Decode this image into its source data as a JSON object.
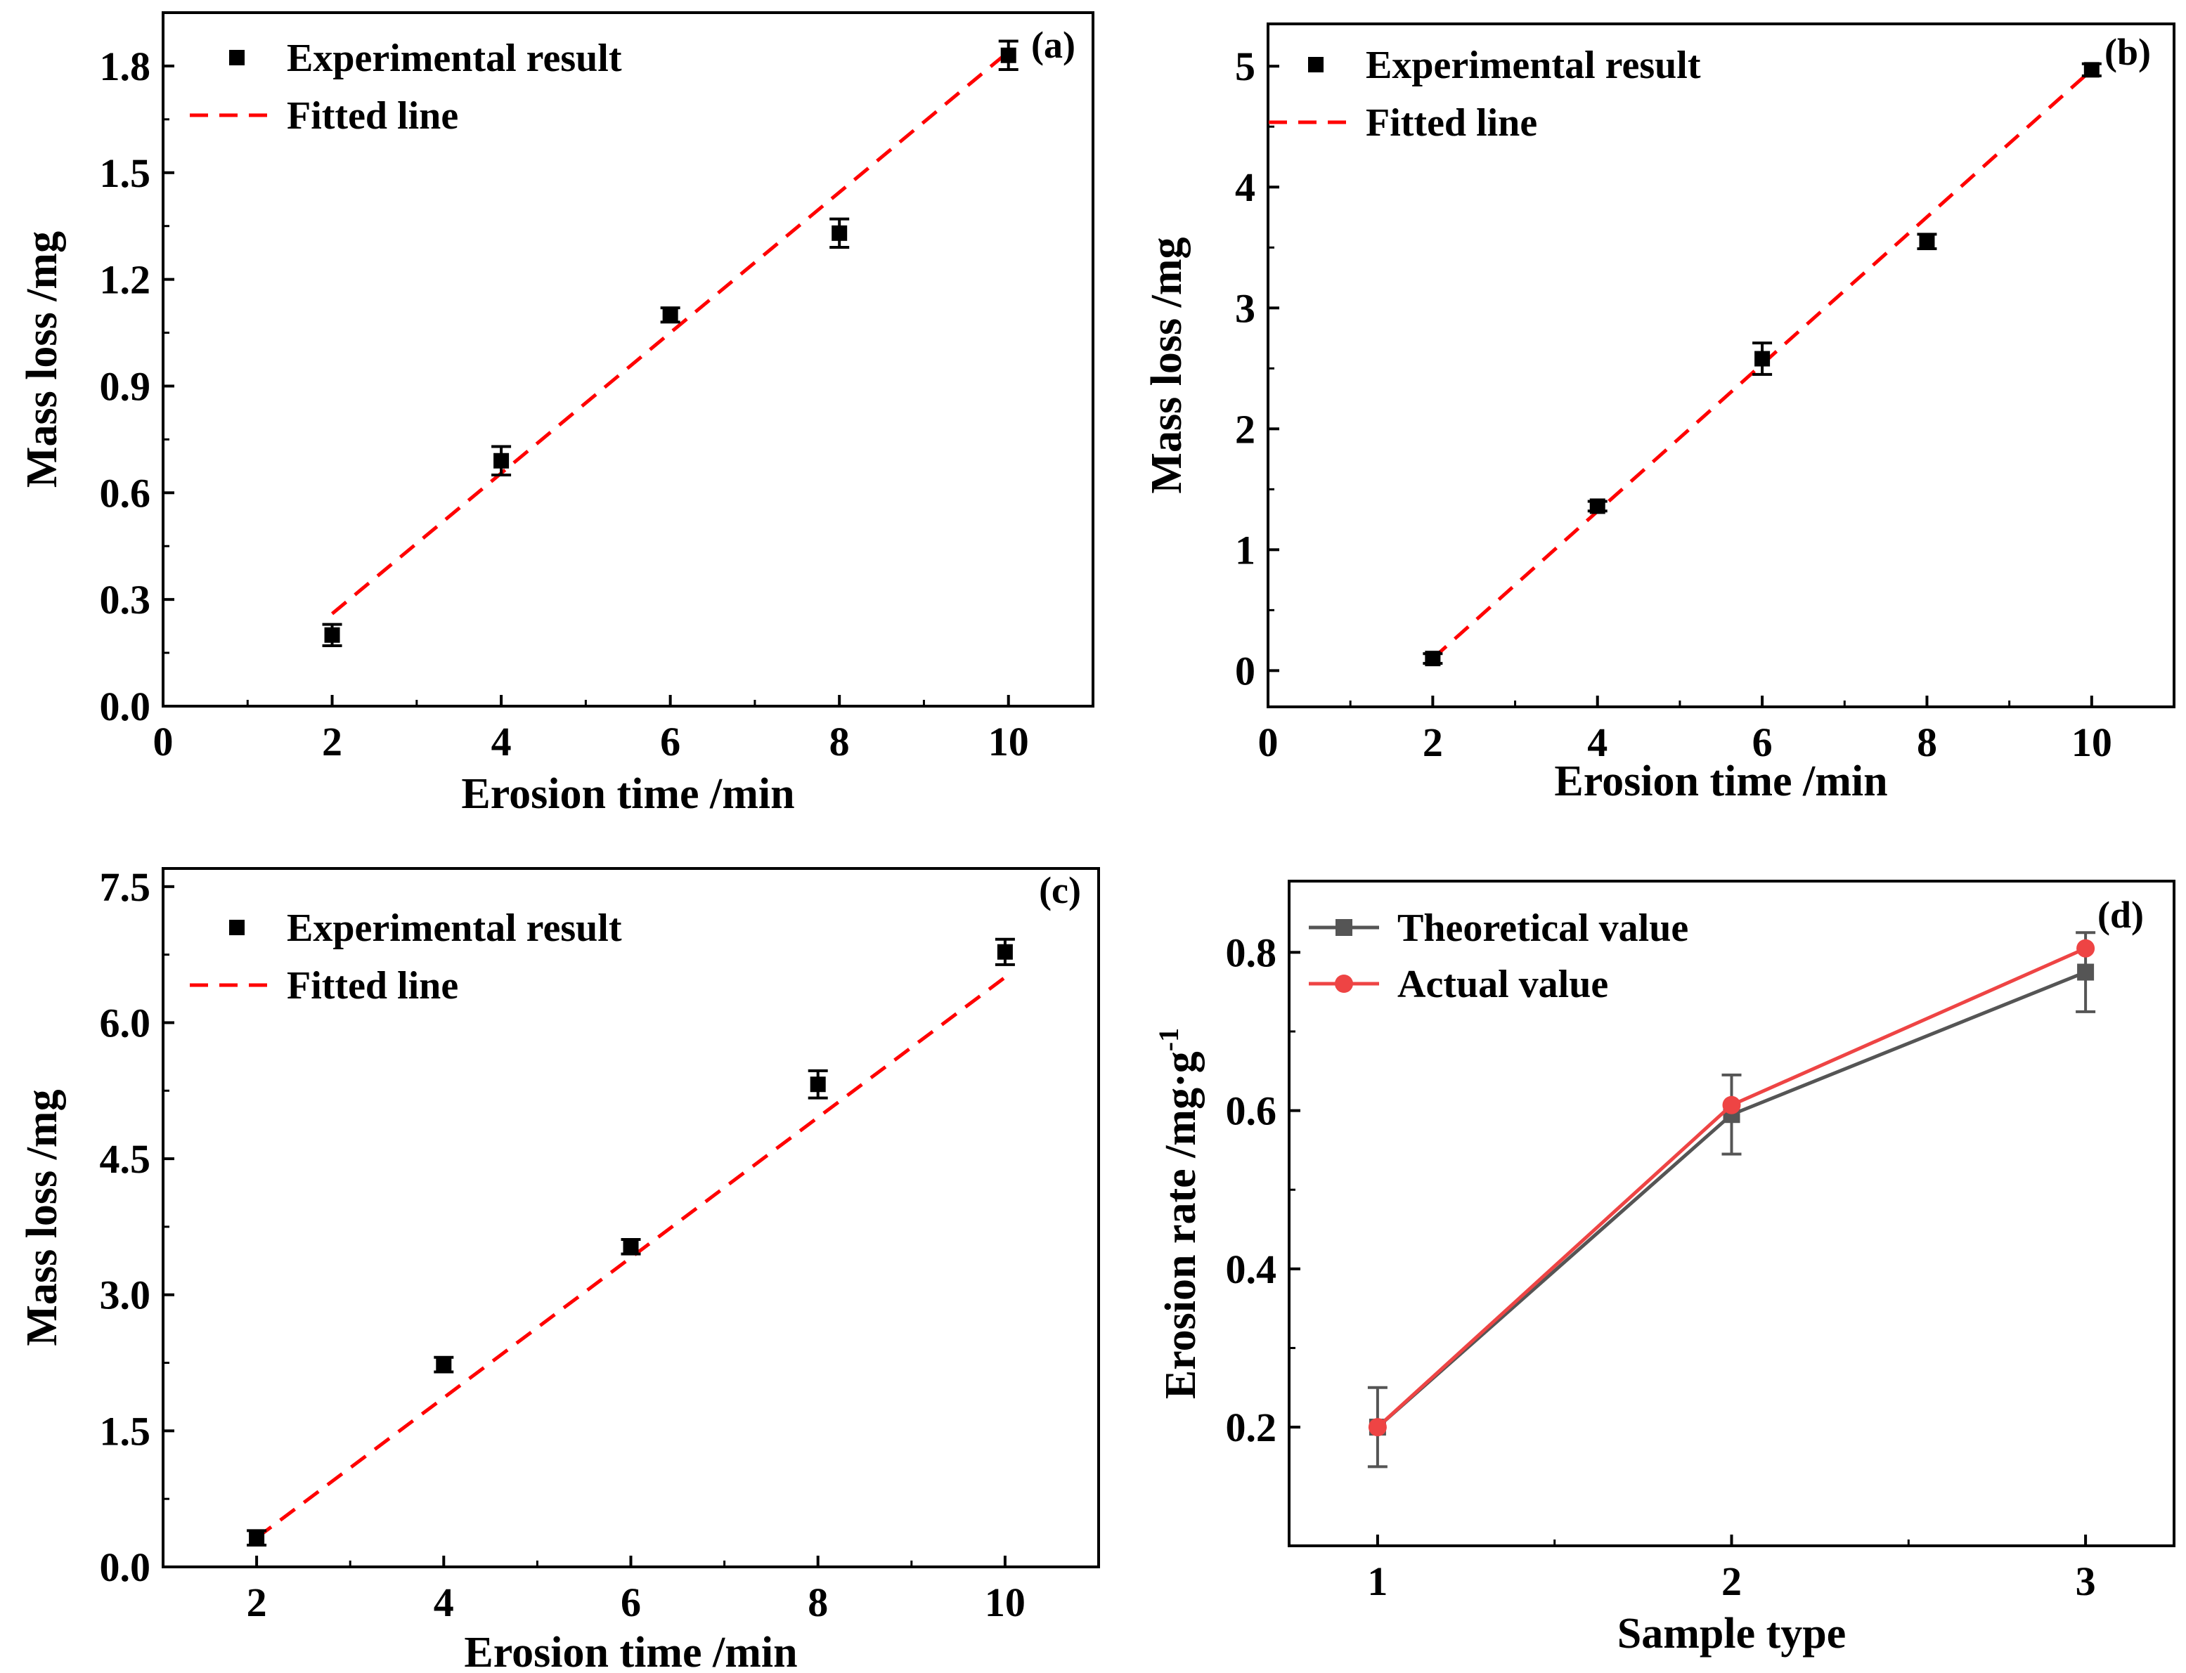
{
  "chart_data": [
    {
      "panel": "(a)",
      "type": "scatter",
      "xlabel": "Erosion time /min",
      "ylabel": "Mass loss /mg",
      "xlim": [
        0,
        11
      ],
      "ylim": [
        0,
        1.95
      ],
      "xticks": [
        "0",
        "2",
        "4",
        "6",
        "8",
        "10"
      ],
      "yticks": [
        "0.0",
        "0.3",
        "0.6",
        "0.9",
        "1.2",
        "1.5",
        "1.8"
      ],
      "legend": [
        "Experimental result",
        "Fitted line"
      ],
      "legend_position": "top-left",
      "series": [
        {
          "name": "Experimental result",
          "kind": "scatter",
          "color": "#000000",
          "x": [
            2,
            4,
            6,
            8,
            10
          ],
          "y": [
            0.2,
            0.69,
            1.1,
            1.33,
            1.83
          ],
          "err": [
            0.03,
            0.04,
            0.02,
            0.04,
            0.04
          ]
        },
        {
          "name": "Fitted line",
          "kind": "fit",
          "color": "#ff0000",
          "x": [
            2,
            10
          ],
          "y": [
            0.26,
            1.84
          ]
        }
      ]
    },
    {
      "panel": "(b)",
      "type": "scatter",
      "xlabel": "Erosion time /min",
      "ylabel": "Mass loss /mg",
      "xlim": [
        0,
        11
      ],
      "ylim": [
        -0.3,
        5.35
      ],
      "xticks": [
        "0",
        "2",
        "4",
        "6",
        "8",
        "10"
      ],
      "yticks": [
        "0",
        "1",
        "2",
        "3",
        "4",
        "5"
      ],
      "legend": [
        "Experimental result",
        "Fitted line"
      ],
      "legend_position": "top-left",
      "series": [
        {
          "name": "Experimental result",
          "kind": "scatter",
          "color": "#000000",
          "x": [
            2,
            4,
            6,
            8,
            10
          ],
          "y": [
            0.1,
            1.36,
            2.58,
            3.55,
            4.97
          ],
          "err": [
            0.04,
            0.04,
            0.13,
            0.06,
            0.05
          ]
        },
        {
          "name": "Fitted line",
          "kind": "fit",
          "color": "#ff0000",
          "x": [
            2,
            10
          ],
          "y": [
            0.1,
            4.97
          ]
        }
      ]
    },
    {
      "panel": "(c)",
      "type": "scatter",
      "xlabel": "Erosion time /min",
      "ylabel": "Mass loss /mg",
      "xlim": [
        1,
        11
      ],
      "ylim": [
        0,
        7.7
      ],
      "xticks": [
        "2",
        "4",
        "6",
        "8",
        "10"
      ],
      "yticks": [
        "0.0",
        "1.5",
        "3.0",
        "4.5",
        "6.0",
        "7.5"
      ],
      "legend": [
        "Experimental result",
        "Fitted line"
      ],
      "legend_position": "top-left",
      "series": [
        {
          "name": "Experimental result",
          "kind": "scatter",
          "color": "#000000",
          "x": [
            2,
            4,
            6,
            8,
            10
          ],
          "y": [
            0.32,
            2.23,
            3.53,
            5.32,
            6.78
          ],
          "err": [
            0.08,
            0.08,
            0.08,
            0.15,
            0.14
          ]
        },
        {
          "name": "Fitted line",
          "kind": "fit",
          "color": "#ff0000",
          "x": [
            2,
            10
          ],
          "y": [
            0.32,
            6.5
          ]
        }
      ]
    },
    {
      "panel": "(d)",
      "type": "line",
      "xlabel": "Sample type",
      "ylabel": "Erosion rate /mg·g",
      "ylabel_superscript": "-1",
      "xlim": [
        0.75,
        3.25
      ],
      "ylim": [
        0.05,
        0.89
      ],
      "xticks": [
        "1",
        "2",
        "3"
      ],
      "yticks": [
        "0.2",
        "0.4",
        "0.6",
        "0.8"
      ],
      "legend": [
        "Theoretical value",
        "Actual value"
      ],
      "legend_position": "top-left",
      "categories": [
        1,
        2,
        3
      ],
      "series": [
        {
          "name": "Theoretical value",
          "color": "#555555",
          "marker": "square",
          "values": [
            0.2,
            0.595,
            0.775
          ],
          "err": [
            0.05,
            0.05,
            0.05
          ]
        },
        {
          "name": "Actual value",
          "color": "#ee4444",
          "marker": "circle",
          "values": [
            0.2,
            0.607,
            0.805
          ],
          "err": [
            0,
            0,
            0
          ]
        }
      ]
    }
  ]
}
